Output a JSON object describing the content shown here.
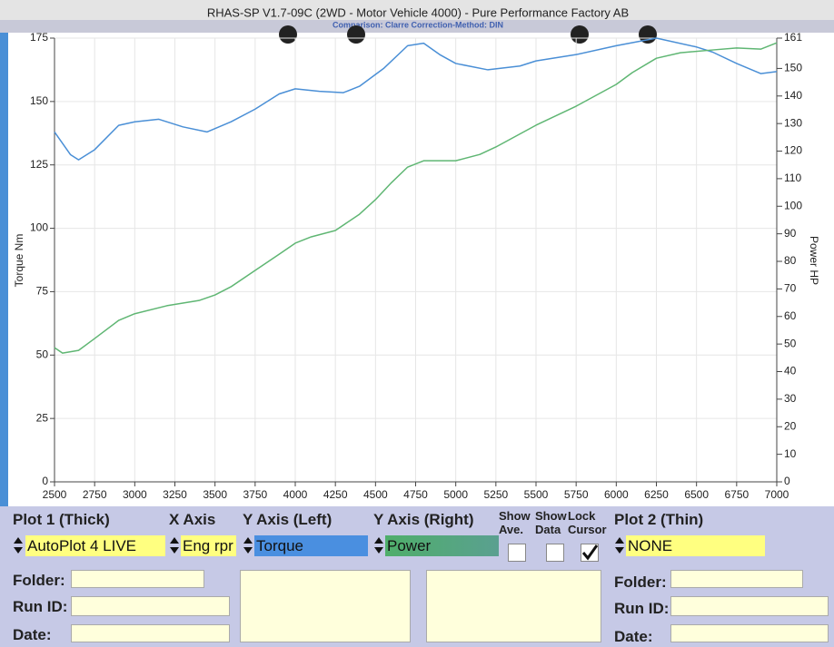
{
  "window": {
    "title": "RHAS-SP V1.7-09C  (2WD - Motor Vehicle 4000) - Pure Performance Factory AB",
    "subtitle": "Comparison: Clarre    Correction-Method: DIN"
  },
  "chart_data": {
    "type": "line",
    "xlim": [
      2500,
      7000
    ],
    "xticks": [
      2500,
      2750,
      3000,
      3250,
      3500,
      3750,
      4000,
      4250,
      4500,
      4750,
      5000,
      5250,
      5500,
      5750,
      6000,
      6250,
      6500,
      6750,
      7000
    ],
    "ylim": [
      0,
      175
    ],
    "yticks": [
      0,
      25,
      50,
      75,
      100,
      125,
      150,
      175
    ],
    "y2lim": [
      0,
      161
    ],
    "y2ticks": [
      0,
      10,
      20,
      30,
      40,
      50,
      60,
      70,
      80,
      90,
      100,
      110,
      120,
      130,
      140,
      150,
      161
    ],
    "grid": true,
    "series": [
      {
        "name": "Torque Nm",
        "color": "#4a8fd6",
        "x": [
          2500,
          2600,
          2650,
          2750,
          2900,
          3000,
          3150,
          3300,
          3450,
          3600,
          3750,
          3900,
          4000,
          4150,
          4300,
          4400,
          4550,
          4700,
          4800,
          4900,
          5000,
          5200,
          5400,
          5500,
          5750,
          6000,
          6250,
          6500,
          6600,
          6750,
          6900,
          7000
        ],
        "values": [
          138,
          129,
          127,
          131,
          140.6,
          142,
          143,
          140,
          138,
          142,
          147,
          153,
          155,
          154,
          153.5,
          156,
          163,
          172,
          173,
          168.5,
          165,
          162.5,
          164,
          166,
          168.5,
          172,
          175,
          171.5,
          169.5,
          165,
          161,
          161.8
        ]
      },
      {
        "name": "Power HP",
        "color": "#5fb673",
        "axis": "y2",
        "x": [
          2500,
          2550,
          2650,
          2750,
          2900,
          3000,
          3200,
          3400,
          3500,
          3600,
          3750,
          3900,
          4000,
          4100,
          4250,
          4400,
          4500,
          4600,
          4700,
          4800,
          5000,
          5150,
          5250,
          5500,
          5750,
          6000,
          6100,
          6250,
          6400,
          6600,
          6750,
          6900,
          7000
        ],
        "values": [
          48.7,
          46.7,
          47.7,
          52,
          58.6,
          61,
          63.9,
          65.8,
          67.8,
          70.8,
          76.7,
          82.6,
          86.6,
          88.9,
          91.2,
          97.1,
          102.4,
          108.6,
          114.2,
          116.5,
          116.5,
          118.8,
          121.5,
          129.4,
          136.3,
          144.2,
          148.5,
          153.7,
          155.7,
          156.7,
          157.4,
          157,
          159.3
        ]
      }
    ]
  },
  "controls": {
    "plot1": {
      "label": "Plot 1 (Thick)",
      "value": "AutoPlot 4 LIVE"
    },
    "x_axis": {
      "label": "X Axis",
      "value": "Eng rpr"
    },
    "y_left": {
      "label": "Y Axis (Left)",
      "value": "Torque"
    },
    "y_right": {
      "label": "Y Axis (Right)",
      "value": "Power"
    },
    "show_ave": {
      "label": "Show Ave.",
      "checked": false
    },
    "show_data": {
      "label": "Show Data",
      "checked": false
    },
    "lock_cursor": {
      "label": "Lock Cursor",
      "checked": true
    },
    "plot2": {
      "label": "Plot 2 (Thin)",
      "value": "NONE"
    }
  },
  "info_left": {
    "folder": "Folder:",
    "run_id": "Run ID:",
    "date": "Date:"
  },
  "info_right": {
    "folder": "Folder:",
    "run_id": "Run ID:",
    "date": "Date:"
  }
}
